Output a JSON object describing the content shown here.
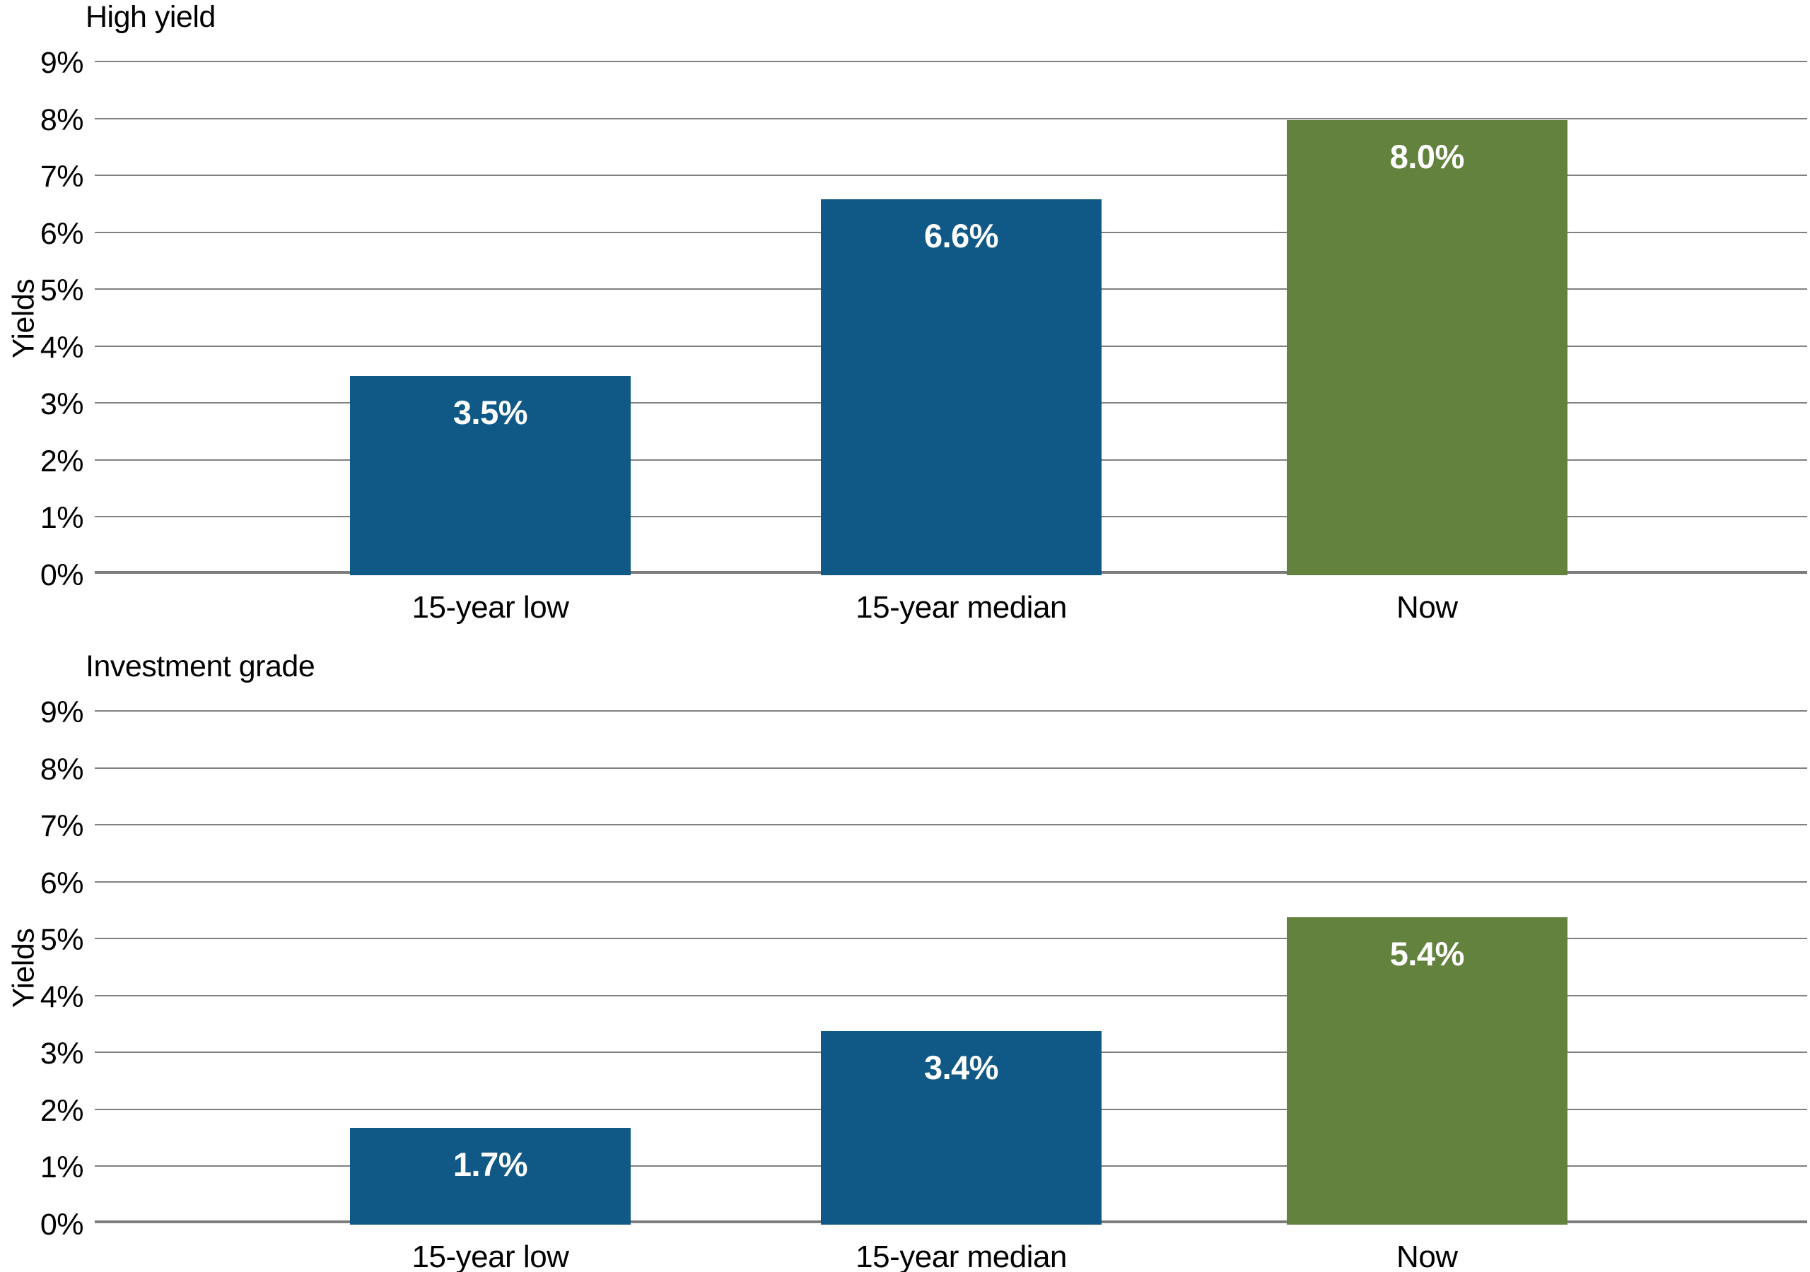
{
  "colors": {
    "bar_blue": "#105885",
    "bar_green": "#62823E",
    "gridline": "#808080",
    "axis_line": "#7d7d7d",
    "text": "#000000",
    "value_label_text": "#FFFFFF"
  },
  "chart_data": [
    {
      "type": "bar",
      "title": "High yield",
      "xlabel": "",
      "ylabel": "Yields",
      "categories": [
        "15-year low",
        "15-year median",
        "Now"
      ],
      "values": [
        3.5,
        6.6,
        8.0
      ],
      "value_labels": [
        "3.5%",
        "6.6%",
        "8.0%"
      ],
      "bar_colors": [
        "#105885",
        "#105885",
        "#62823E"
      ],
      "ylim": [
        0,
        9
      ],
      "y_ticks": [
        "0%",
        "1%",
        "2%",
        "3%",
        "4%",
        "5%",
        "6%",
        "7%",
        "8%",
        "9%"
      ],
      "y_tick_values": [
        0,
        1,
        2,
        3,
        4,
        5,
        6,
        7,
        8,
        9
      ],
      "grid": true,
      "legend": false,
      "bar_center_fractions": [
        0.231,
        0.506,
        0.778
      ],
      "bar_width_fraction": 0.164
    },
    {
      "type": "bar",
      "title": "Investment grade",
      "xlabel": "",
      "ylabel": "Yields",
      "categories": [
        "15-year low",
        "15-year median",
        "Now"
      ],
      "values": [
        1.7,
        3.4,
        5.4
      ],
      "value_labels": [
        "1.7%",
        "3.4%",
        "5.4%"
      ],
      "bar_colors": [
        "#105885",
        "#105885",
        "#62823E"
      ],
      "ylim": [
        0,
        9
      ],
      "y_ticks": [
        "0%",
        "1%",
        "2%",
        "3%",
        "4%",
        "5%",
        "6%",
        "7%",
        "8%",
        "9%"
      ],
      "y_tick_values": [
        0,
        1,
        2,
        3,
        4,
        5,
        6,
        7,
        8,
        9
      ],
      "grid": true,
      "legend": false,
      "bar_center_fractions": [
        0.231,
        0.506,
        0.778
      ],
      "bar_width_fraction": 0.164
    }
  ]
}
